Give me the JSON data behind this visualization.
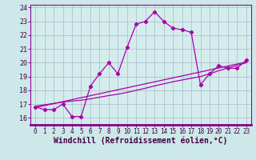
{
  "xlabel": "Windchill (Refroidissement éolien,°C)",
  "xlim": [
    -0.5,
    23.5
  ],
  "ylim": [
    15.5,
    24.2
  ],
  "yticks": [
    16,
    17,
    18,
    19,
    20,
    21,
    22,
    23,
    24
  ],
  "xticks": [
    0,
    1,
    2,
    3,
    4,
    5,
    6,
    7,
    8,
    9,
    10,
    11,
    12,
    13,
    14,
    15,
    16,
    17,
    18,
    19,
    20,
    21,
    22,
    23
  ],
  "line1_x": [
    0,
    1,
    2,
    3,
    4,
    5,
    6,
    7,
    8,
    9,
    10,
    11,
    12,
    13,
    14,
    15,
    16,
    17,
    18,
    19,
    20,
    21,
    22,
    23
  ],
  "line1_y": [
    16.8,
    16.6,
    16.6,
    17.0,
    16.1,
    16.1,
    18.3,
    19.2,
    20.0,
    19.2,
    21.1,
    22.8,
    23.0,
    23.7,
    23.0,
    22.5,
    22.4,
    22.2,
    18.4,
    19.2,
    19.8,
    19.6,
    19.6,
    20.2
  ],
  "line2_x": [
    0,
    1,
    2,
    3,
    4,
    5,
    6,
    7,
    8,
    9,
    10,
    11,
    12,
    13,
    14,
    15,
    16,
    17,
    18,
    19,
    20,
    21,
    22,
    23
  ],
  "line2_y": [
    16.85,
    16.95,
    17.05,
    17.15,
    17.22,
    17.28,
    17.38,
    17.5,
    17.62,
    17.72,
    17.85,
    18.0,
    18.15,
    18.32,
    18.47,
    18.62,
    18.75,
    18.87,
    19.0,
    19.2,
    19.42,
    19.62,
    19.82,
    20.0
  ],
  "line3_x": [
    0,
    23
  ],
  "line3_y": [
    16.75,
    20.05
  ],
  "line_color": "#aa00aa",
  "bg_color": "#cce8e8",
  "grid_color": "#aabbcc",
  "plot_bg": "#d4ecec",
  "spine_color": "#9900aa",
  "tick_fontsize": 5.5,
  "label_fontsize": 7
}
